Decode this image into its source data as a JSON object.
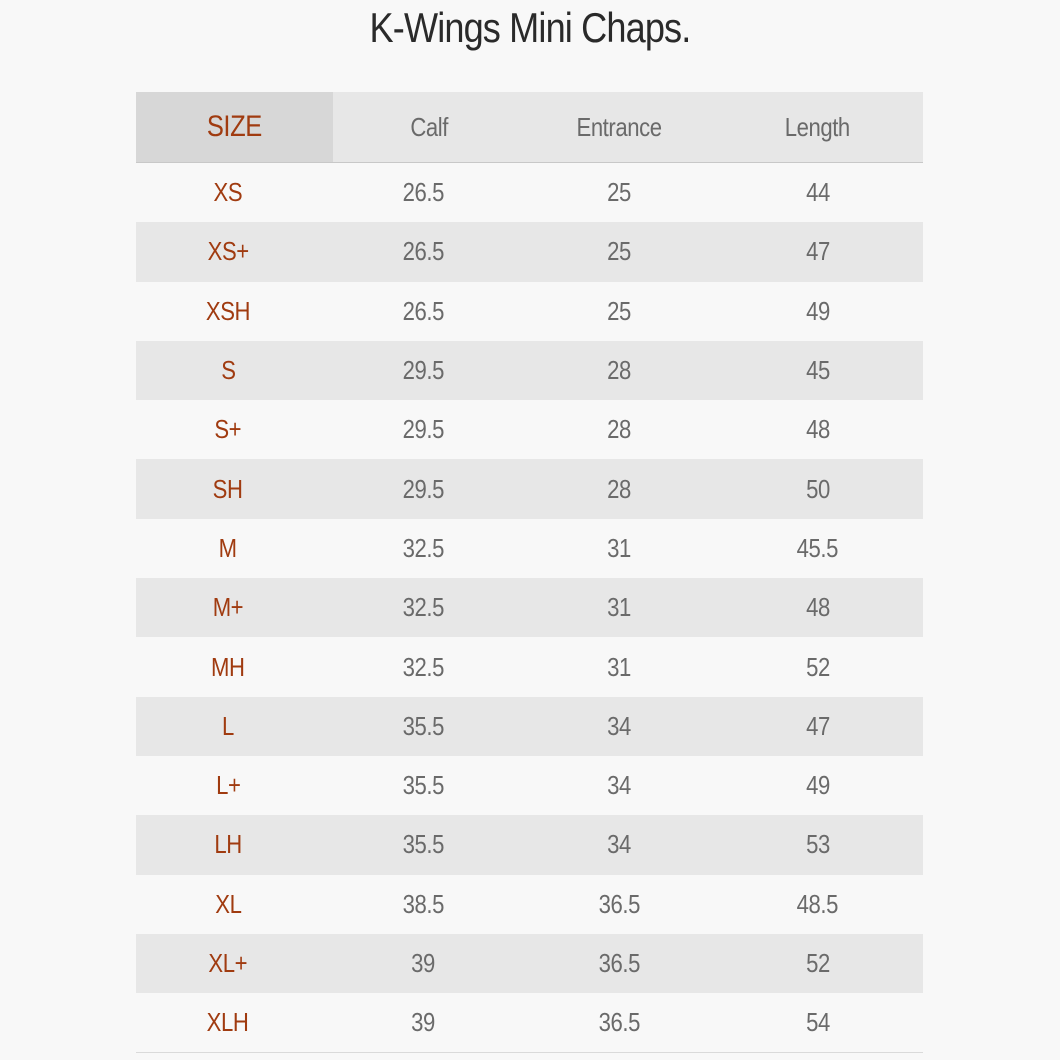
{
  "title": "K-Wings Mini Chaps.",
  "table": {
    "headers": [
      "SIZE",
      "Calf",
      "Entrance",
      "Length"
    ],
    "rows": [
      [
        "XS",
        "26.5",
        "25",
        "44"
      ],
      [
        "XS+",
        "26.5",
        "25",
        "47"
      ],
      [
        "XSH",
        "26.5",
        "25",
        "49"
      ],
      [
        "S",
        "29.5",
        "28",
        "45"
      ],
      [
        "S+",
        "29.5",
        "28",
        "48"
      ],
      [
        "SH",
        "29.5",
        "28",
        "50"
      ],
      [
        "M",
        "32.5",
        "31",
        "45.5"
      ],
      [
        "M+",
        "32.5",
        "31",
        "48"
      ],
      [
        "MH",
        "32.5",
        "31",
        "52"
      ],
      [
        "L",
        "35.5",
        "34",
        "47"
      ],
      [
        "L+",
        "35.5",
        "34",
        "49"
      ],
      [
        "LH",
        "35.5",
        "34",
        "53"
      ],
      [
        "XL",
        "38.5",
        "36.5",
        "48.5"
      ],
      [
        "XL+",
        "39",
        "36.5",
        "52"
      ],
      [
        "XLH",
        "39",
        "36.5",
        "54"
      ]
    ]
  },
  "colors": {
    "size_accent": "#a03b10",
    "text": "#6a6a6a",
    "title": "#2a2a2a",
    "stripe": "#e7e7e7",
    "background": "#f8f8f8"
  }
}
